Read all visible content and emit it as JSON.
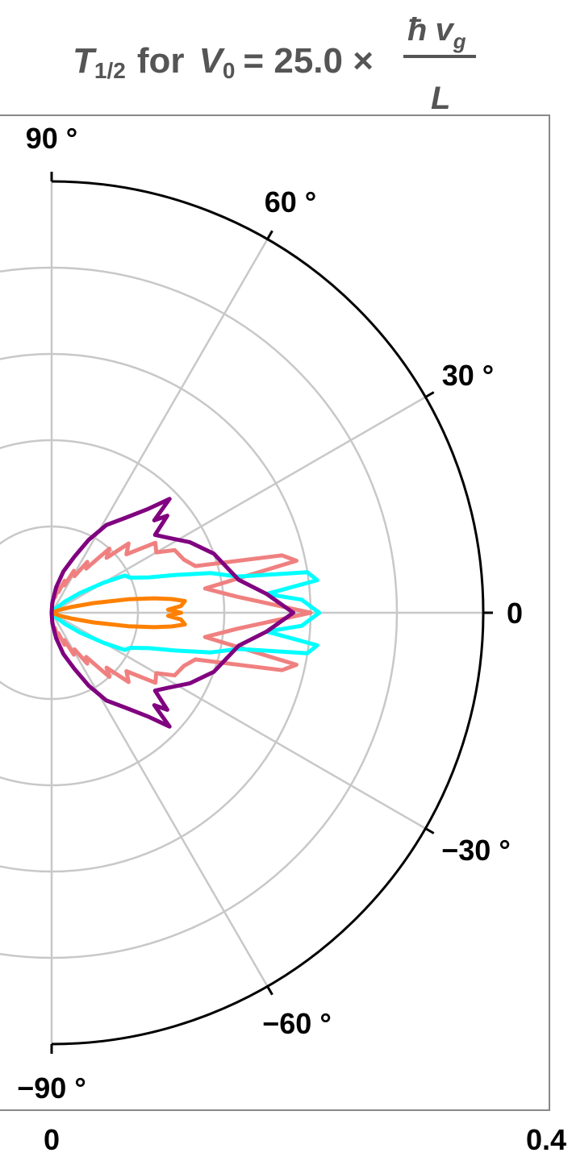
{
  "chart_data": {
    "type": "polar",
    "title": {
      "T": "T",
      "T_sub": "1/2",
      "for": "for",
      "V": "V",
      "V_sub": "0",
      "equals": "= 25.0 ×",
      "numerator_hbar": "ħ",
      "numerator_v": "v",
      "numerator_sub": "g",
      "denominator": "L"
    },
    "angle_tick_labels": [
      "90 °",
      "60 °",
      "30 °",
      "0",
      "−30 °",
      "−60 °",
      "−90 °"
    ],
    "angle_ticks_deg": [
      90,
      60,
      30,
      0,
      -30,
      -60,
      -90
    ],
    "radial_tick_labels": [
      "0",
      "0.4"
    ],
    "r_range": [
      0,
      0.5
    ],
    "gridlines": true,
    "series": [
      {
        "color": "#f08080",
        "points": [
          [
            0,
            0.3
          ],
          [
            5,
            0.215
          ],
          [
            9,
            0.18
          ],
          [
            12,
            0.29
          ],
          [
            14,
            0.275
          ],
          [
            18,
            0.175
          ],
          [
            22,
            0.165
          ],
          [
            27,
            0.16
          ],
          [
            30,
            0.14
          ],
          [
            34,
            0.145
          ],
          [
            38,
            0.11
          ],
          [
            42,
            0.12
          ],
          [
            45,
            0.09
          ],
          [
            48,
            0.1
          ],
          [
            52,
            0.065
          ],
          [
            55,
            0.072
          ],
          [
            58,
            0.05
          ],
          [
            62,
            0.055
          ],
          [
            65,
            0.035
          ],
          [
            68,
            0.04
          ],
          [
            72,
            0.025
          ],
          [
            75,
            0.03
          ],
          [
            78,
            0.018
          ],
          [
            82,
            0.02
          ],
          [
            86,
            0.01
          ],
          [
            90,
            0
          ]
        ]
      },
      {
        "color": "#00ffff",
        "points": [
          [
            0,
            0.31
          ],
          [
            3,
            0.29
          ],
          [
            5,
            0.25
          ],
          [
            7,
            0.31
          ],
          [
            9,
            0.3
          ],
          [
            11,
            0.22
          ],
          [
            14,
            0.19
          ],
          [
            17,
            0.15
          ],
          [
            20,
            0.12
          ],
          [
            24,
            0.1
          ],
          [
            27,
            0.095
          ],
          [
            30,
            0.07
          ],
          [
            35,
            0.04
          ],
          [
            40,
            0.02
          ],
          [
            50,
            0.005
          ],
          [
            90,
            0
          ]
        ]
      },
      {
        "color": "#ff8000",
        "points": [
          [
            0,
            0.15
          ],
          [
            1.5,
            0.135
          ],
          [
            3,
            0.15
          ],
          [
            5,
            0.155
          ],
          [
            6.5,
            0.14
          ],
          [
            8,
            0.12
          ],
          [
            10,
            0.09
          ],
          [
            13,
            0.05
          ],
          [
            16,
            0.025
          ],
          [
            20,
            0.01
          ],
          [
            30,
            0
          ],
          [
            90,
            0
          ]
        ]
      },
      {
        "color": "#800080",
        "points": [
          [
            0,
            0.28
          ],
          [
            5,
            0.25
          ],
          [
            10,
            0.22
          ],
          [
            20,
            0.2
          ],
          [
            27,
            0.18
          ],
          [
            33,
            0.16
          ],
          [
            37,
            0.15
          ],
          [
            40,
            0.175
          ],
          [
            42,
            0.16
          ],
          [
            44,
            0.19
          ],
          [
            47,
            0.165
          ],
          [
            52,
            0.14
          ],
          [
            58,
            0.12
          ],
          [
            63,
            0.095
          ],
          [
            68,
            0.07
          ],
          [
            74,
            0.05
          ],
          [
            80,
            0.03
          ],
          [
            86,
            0.012
          ],
          [
            90,
            0
          ]
        ]
      }
    ]
  }
}
